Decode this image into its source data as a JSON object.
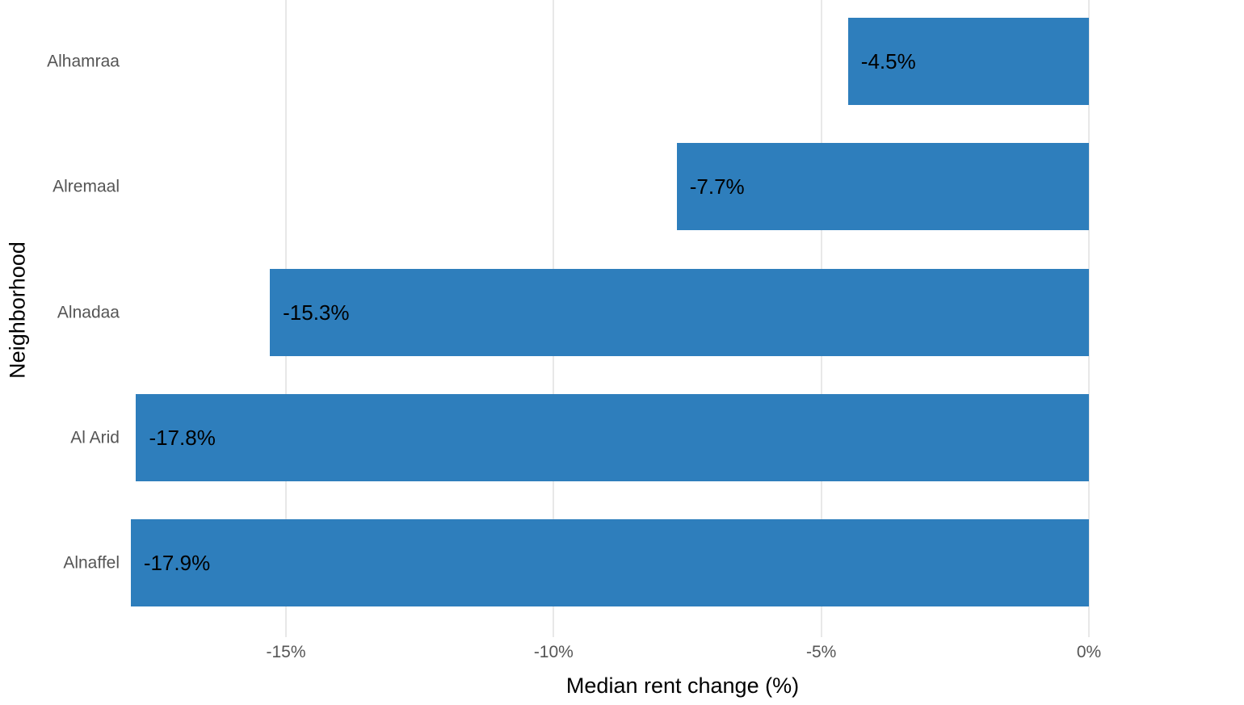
{
  "chart_data": {
    "type": "bar",
    "orientation": "horizontal",
    "title": "",
    "xlabel": "Median rent change (%)",
    "ylabel": "Neighborhood",
    "categories": [
      "Alhamraa",
      "Alremaal",
      "Alnadaa",
      "Al Arid",
      "Alnaffel"
    ],
    "values": [
      -4.5,
      -7.7,
      -15.3,
      -17.8,
      -17.9
    ],
    "bar_labels": [
      "-4.5%",
      "-7.7%",
      "-15.3%",
      "-17.8%",
      "-17.9%"
    ],
    "x_ticks": [
      {
        "value": -15,
        "label": "-15%"
      },
      {
        "value": -10,
        "label": "-10%"
      },
      {
        "value": -5,
        "label": "-5%"
      },
      {
        "value": 0,
        "label": "0%"
      }
    ],
    "xlim": [
      -18,
      2.9
    ],
    "grid": true,
    "legend": "none",
    "colors": {
      "bar": "#2e7ebc",
      "bar_value_label": "#000000",
      "axis_text": "#555555",
      "axis_title": "#000000",
      "gridline": "#e8e8e8",
      "background": "#ffffff"
    }
  }
}
